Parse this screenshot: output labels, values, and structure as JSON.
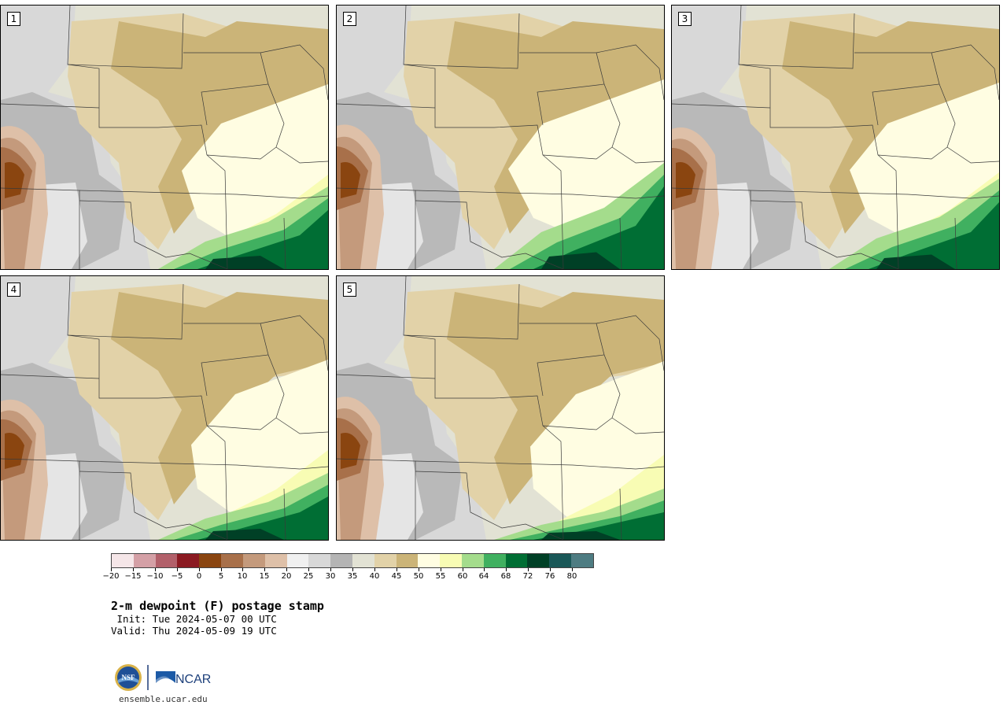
{
  "panels": [
    {
      "label": "1"
    },
    {
      "label": "2"
    },
    {
      "label": "3"
    },
    {
      "label": "4"
    },
    {
      "label": "5"
    }
  ],
  "colorbar": {
    "colors": [
      "#f5e6e8",
      "#d4a0a6",
      "#b2606a",
      "#8b1a22",
      "#8a4510",
      "#a8704a",
      "#c49a7c",
      "#dec0a8",
      "#f0f0f0",
      "#d8d8d8",
      "#b4b4b4",
      "#e2e2d4",
      "#e2d2a8",
      "#cbb478",
      "#fffde2",
      "#f8fcb4",
      "#a4dc8c",
      "#40b060",
      "#006e34",
      "#004026",
      "#1a5858",
      "#4e7c82"
    ],
    "tick_labels": [
      "−20",
      "−15",
      "−10",
      "−5",
      "0",
      "5",
      "10",
      "15",
      "20",
      "25",
      "30",
      "35",
      "40",
      "45",
      "50",
      "55",
      "60",
      "64",
      "68",
      "72",
      "76",
      "80"
    ]
  },
  "title": "2-m dewpoint (F) postage stamp",
  "init": " Init: Tue 2024-05-07 00 UTC",
  "valid": "Valid: Thu 2024-05-09 19 UTC",
  "site": "ensemble.ucar.edu",
  "logos": {
    "nsf": "NSF",
    "ncar": "NCAR"
  }
}
